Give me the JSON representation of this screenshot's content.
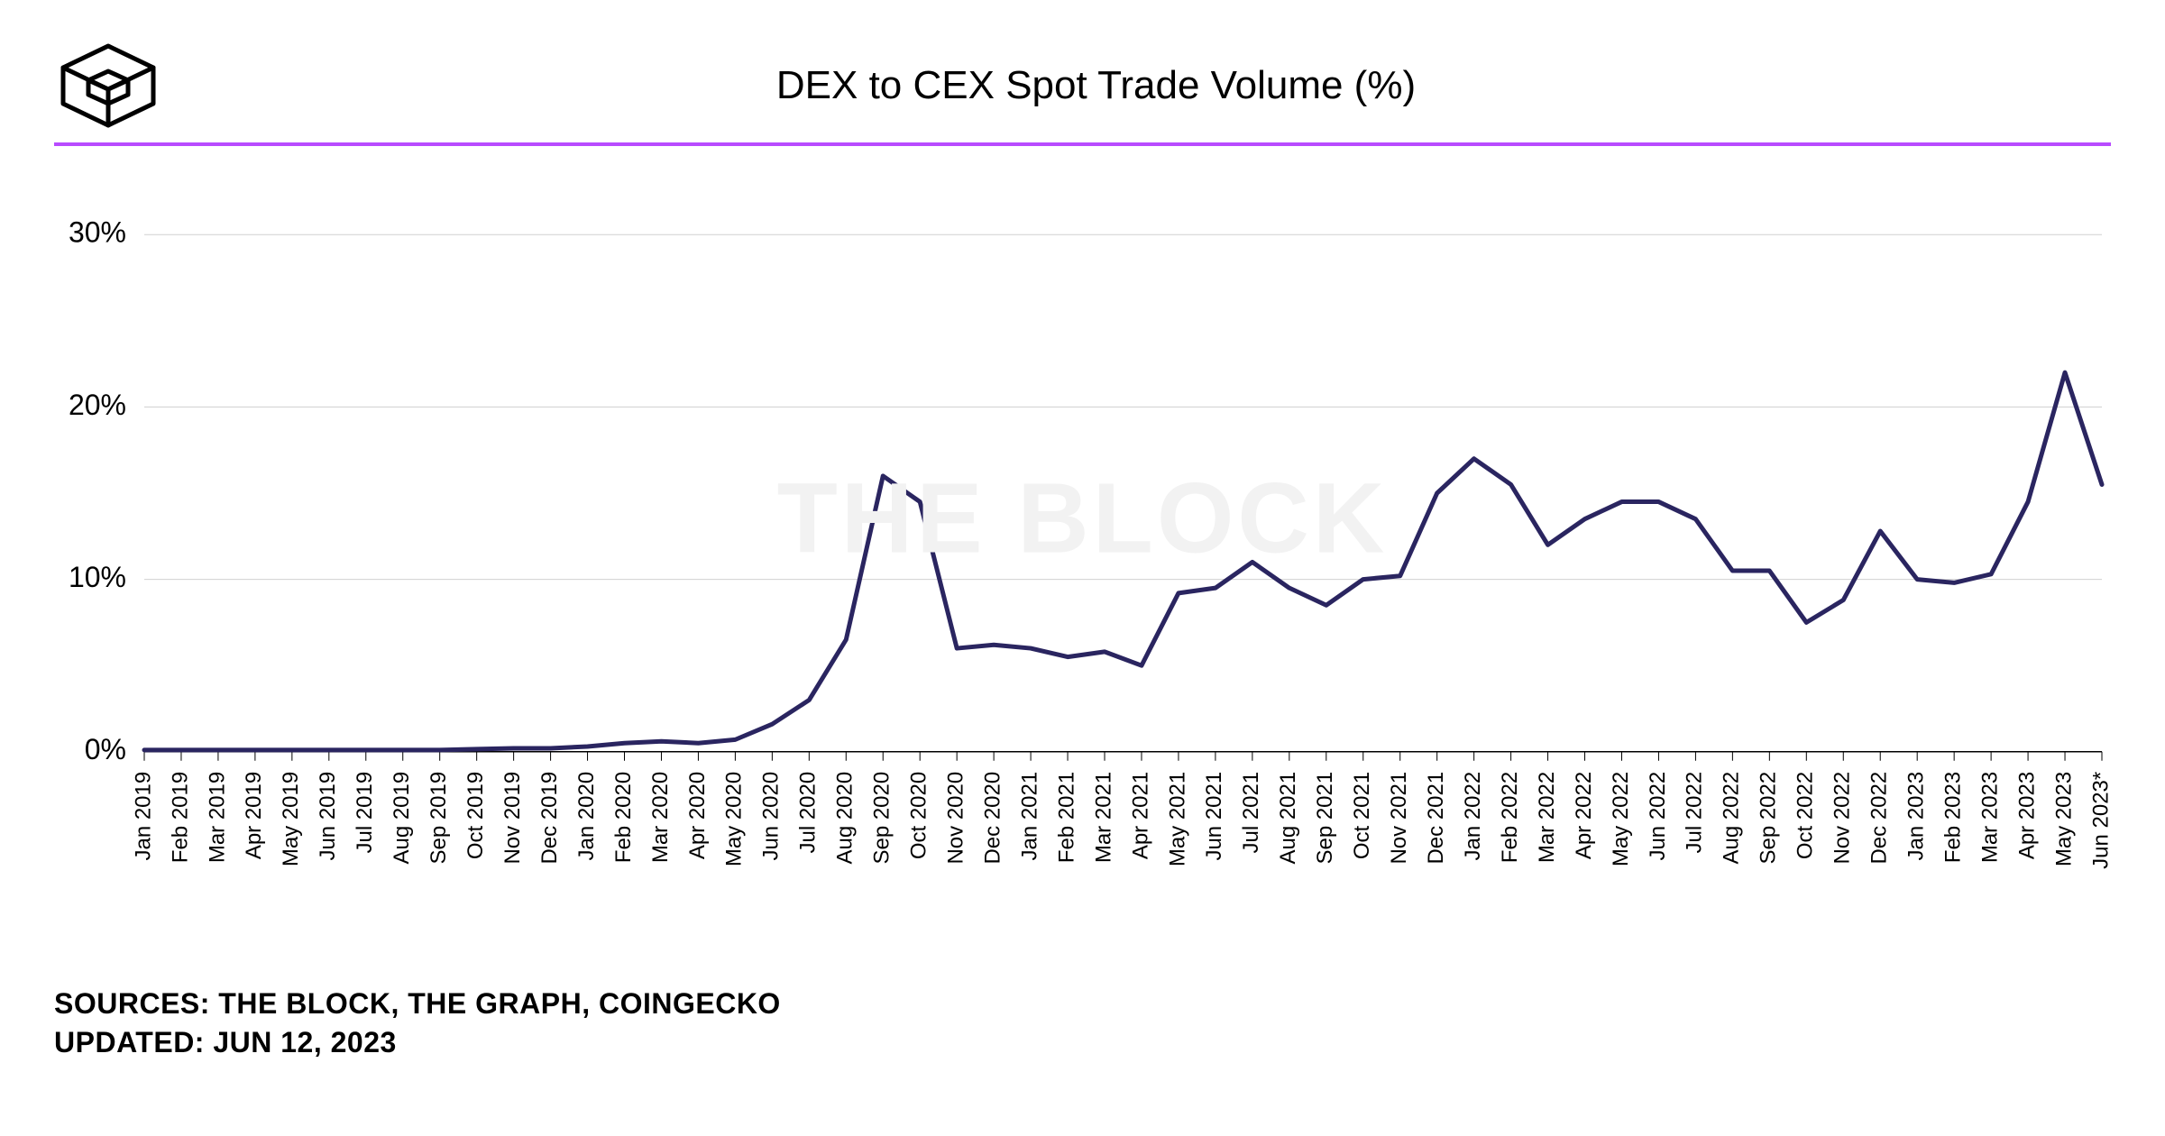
{
  "header": {
    "title": "DEX to CEX Spot Trade Volume (%)"
  },
  "watermark": "THE BLOCK",
  "footer": {
    "sources_label": "SOURCES: THE BLOCK, THE GRAPH, COINGECKO",
    "updated_label": "UPDATED: JUN 12, 2023"
  },
  "chart": {
    "type": "line",
    "ylim": [
      -2,
      32
    ],
    "ytick_step": 10,
    "yticks": [
      0,
      10,
      20,
      30
    ],
    "ytick_suffix": "%",
    "line_color": "#2a2560",
    "line_width": 5,
    "axis_color": "#000000",
    "grid_color": "#d0d0d0",
    "accent_color": "#b84bff",
    "background_color": "#ffffff",
    "categories": [
      "Jan 2019",
      "Feb 2019",
      "Mar 2019",
      "Apr 2019",
      "May 2019",
      "Jun 2019",
      "Jul 2019",
      "Aug 2019",
      "Sep 2019",
      "Oct 2019",
      "Nov 2019",
      "Dec 2019",
      "Jan 2020",
      "Feb 2020",
      "Mar 2020",
      "Apr 2020",
      "May 2020",
      "Jun 2020",
      "Jul 2020",
      "Aug 2020",
      "Sep 2020",
      "Oct 2020",
      "Nov 2020",
      "Dec 2020",
      "Jan 2021",
      "Feb 2021",
      "Mar 2021",
      "Apr 2021",
      "May 2021",
      "Jun 2021",
      "Jul 2021",
      "Aug 2021",
      "Sep 2021",
      "Oct 2021",
      "Nov 2021",
      "Dec 2021",
      "Jan 2022",
      "Feb 2022",
      "Mar 2022",
      "Apr 2022",
      "May 2022",
      "Jun 2022",
      "Jul 2022",
      "Aug 2022",
      "Sep 2022",
      "Oct 2022",
      "Nov 2022",
      "Dec 2022",
      "Jan 2023",
      "Feb 2023",
      "Mar 2023",
      "Apr 2023",
      "May 2023",
      "Jun 2023*"
    ],
    "values": [
      0.1,
      0.1,
      0.1,
      0.1,
      0.1,
      0.1,
      0.1,
      0.1,
      0.1,
      0.15,
      0.2,
      0.2,
      0.3,
      0.5,
      0.6,
      0.5,
      0.7,
      1.6,
      3.0,
      6.5,
      16.0,
      14.5,
      6.0,
      6.2,
      6.0,
      5.5,
      5.8,
      5.0,
      9.2,
      9.5,
      11.0,
      9.5,
      8.5,
      10.0,
      10.2,
      15.0,
      17.0,
      15.5,
      12.0,
      13.5,
      14.5,
      14.5,
      13.5,
      10.5,
      10.5,
      7.5,
      8.8,
      12.8,
      10.0,
      9.8,
      10.3,
      14.5,
      22.0,
      15.5
    ]
  }
}
